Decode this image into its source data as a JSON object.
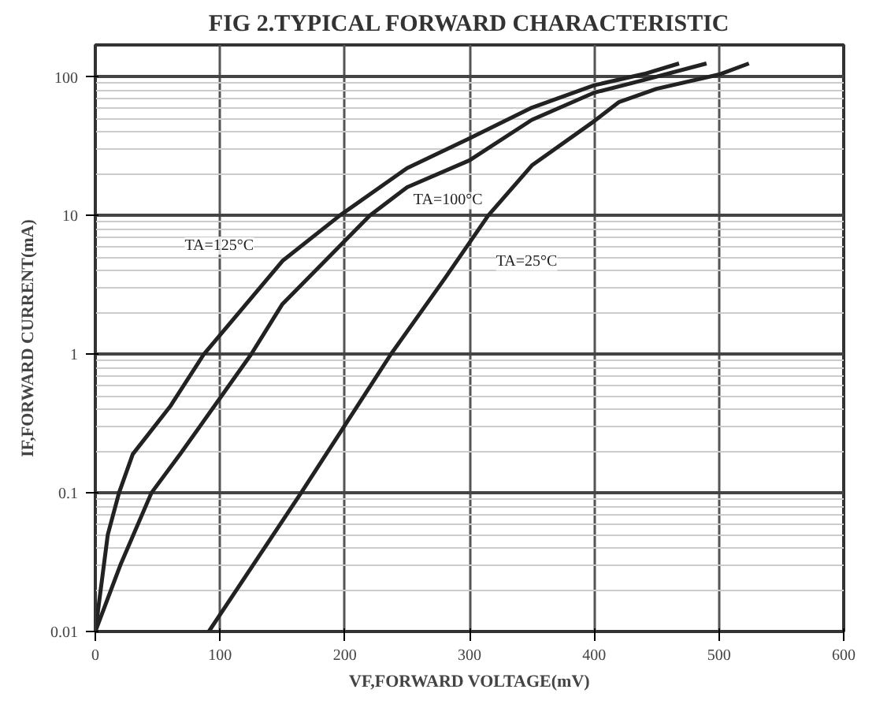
{
  "chart_data": {
    "type": "line",
    "title": "FIG 2.TYPICAL FORWARD CHARACTERISTIC",
    "xlabel": "VF,FORWARD VOLTAGE(mV)",
    "ylabel": "IF,FORWARD CURRENT(mA)",
    "log": "y",
    "grid": true,
    "xlim": [
      0,
      600
    ],
    "xticks": [
      0,
      100,
      200,
      300,
      400,
      500,
      600
    ],
    "ylim": [
      0.01,
      170
    ],
    "yticks": [
      0.01,
      0.1,
      1,
      10,
      100
    ],
    "line_style": "solid",
    "marker": "none",
    "series": [
      {
        "name": "TA=125°C",
        "color": "#222222",
        "x": [
          0,
          10,
          19,
          30,
          60,
          87,
          150,
          196,
          250,
          300,
          350,
          400,
          440,
          468
        ],
        "values": [
          0.01,
          0.05,
          0.1,
          0.19,
          0.42,
          1,
          4.7,
          10,
          22,
          36,
          60,
          87,
          105,
          125
        ]
      },
      {
        "name": "TA=100°C",
        "color": "#222222",
        "x": [
          0,
          20,
          45,
          68,
          125,
          150,
          220,
          250,
          300,
          350,
          400,
          440,
          490
        ],
        "values": [
          0.01,
          0.03,
          0.1,
          0.19,
          1,
          2.3,
          10,
          16,
          25,
          49,
          77,
          95,
          125
        ]
      },
      {
        "name": "TA=25°C",
        "color": "#222222",
        "x": [
          91,
          165,
          237,
          280,
          315,
          350,
          400,
          420,
          450,
          500,
          524
        ],
        "values": [
          0.01,
          0.1,
          1,
          3.5,
          10,
          23,
          48,
          66,
          82,
          104,
          125
        ]
      }
    ]
  }
}
